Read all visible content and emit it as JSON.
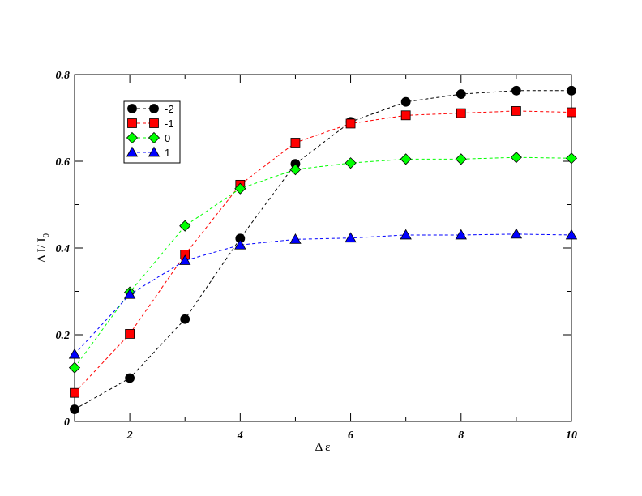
{
  "chart_data": {
    "type": "line",
    "title": "",
    "xlabel": "Δ ε",
    "ylabel": "Δ I/ I",
    "ylabel_sub": "0",
    "xlim": [
      1,
      10
    ],
    "ylim": [
      0,
      0.8
    ],
    "x_ticks": [
      2,
      4,
      6,
      8,
      10
    ],
    "x_tick_labels": [
      "2",
      "4",
      "6",
      "8",
      "10"
    ],
    "y_ticks": [
      0,
      0.2,
      0.4,
      0.6,
      0.8
    ],
    "y_tick_labels": [
      "0",
      "0.2",
      "0.4",
      "0.6",
      "0.8"
    ],
    "grid": false,
    "legend_position": "top-left",
    "x": [
      1,
      2,
      3,
      4,
      5,
      6,
      7,
      8,
      9,
      10
    ],
    "series": [
      {
        "name": "-2",
        "color": "#000000",
        "marker": "circle",
        "values": [
          0.028,
          0.1,
          0.236,
          0.422,
          0.594,
          0.691,
          0.737,
          0.755,
          0.763,
          0.763
        ]
      },
      {
        "name": "-1",
        "color": "#ff0000",
        "marker": "square",
        "values": [
          0.066,
          0.202,
          0.385,
          0.546,
          0.643,
          0.687,
          0.706,
          0.711,
          0.716,
          0.713
        ]
      },
      {
        "name": "0",
        "color": "#00ff00",
        "marker": "diamond",
        "values": [
          0.124,
          0.298,
          0.451,
          0.537,
          0.581,
          0.596,
          0.605,
          0.605,
          0.609,
          0.607
        ]
      },
      {
        "name": "1",
        "color": "#0000ff",
        "marker": "triangle",
        "values": [
          0.155,
          0.293,
          0.371,
          0.407,
          0.42,
          0.423,
          0.43,
          0.43,
          0.432,
          0.43
        ]
      }
    ]
  }
}
